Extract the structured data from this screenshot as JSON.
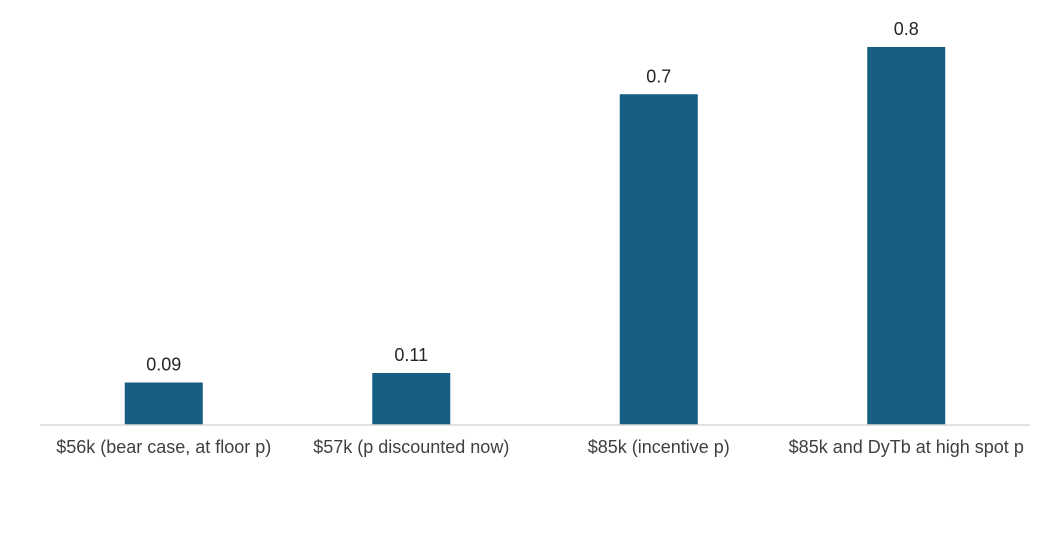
{
  "chart_data": {
    "type": "bar",
    "categories": [
      "$56k (bear case, at floor p)",
      "$57k (p discounted now)",
      "$85k (incentive p)",
      "$85k and DyTb at high spot p"
    ],
    "values": [
      0.09,
      0.11,
      0.7,
      0.8
    ],
    "data_labels": [
      "0.09",
      "0.11",
      "0.7",
      "0.8"
    ],
    "title": "",
    "xlabel": "",
    "ylabel": "",
    "ylim": [
      0,
      0.8
    ],
    "grid": false,
    "legend": "none",
    "bar_color": "#175F82",
    "axis_color": "#D9D9D9"
  }
}
